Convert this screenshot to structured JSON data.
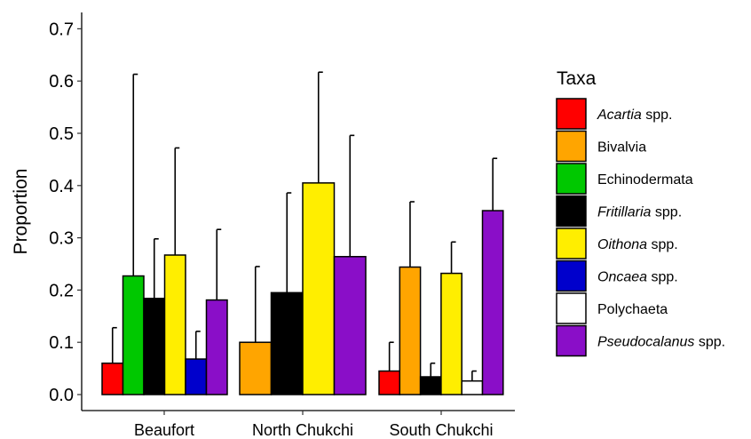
{
  "chart_data": {
    "type": "bar",
    "ylabel": "Proportion",
    "xlabel": "",
    "title": "",
    "ylim": [
      0,
      0.73
    ],
    "yticks": [
      "0.0",
      "0.1",
      "0.2",
      "0.3",
      "0.4",
      "0.5",
      "0.6",
      "0.7"
    ],
    "ytick_values": [
      0,
      0.1,
      0.2,
      0.3,
      0.4,
      0.5,
      0.6,
      0.7
    ],
    "grid": false,
    "legend": {
      "title": "Taxa",
      "placement": "right",
      "items": [
        {
          "key": "acartia",
          "italic": "Acartia",
          "rest": " spp.",
          "color": "#ff0000"
        },
        {
          "key": "bivalvia",
          "italic": "",
          "rest": "Bivalvia",
          "color": "#ffa500"
        },
        {
          "key": "echinodermata",
          "italic": "",
          "rest": "Echinodermata",
          "color": "#00c800"
        },
        {
          "key": "fritillaria",
          "italic": "Fritillaria",
          "rest": " spp.",
          "color": "#000000"
        },
        {
          "key": "oithona",
          "italic": "Oithona",
          "rest": " spp.",
          "color": "#ffee00"
        },
        {
          "key": "oncaea",
          "italic": "Oncaea",
          "rest": " spp.",
          "color": "#0000cc"
        },
        {
          "key": "polychaeta",
          "italic": "",
          "rest": "Polychaeta",
          "color": "#ffffff"
        },
        {
          "key": "pseudocalanus",
          "italic": "Pseudocalanus",
          "rest": " spp.",
          "color": "#8a0ec8"
        }
      ]
    },
    "categories": [
      "Beaufort",
      "North Chukchi",
      "South Chukchi"
    ],
    "groups": [
      {
        "category": "Beaufort",
        "bars": [
          {
            "taxon": "acartia",
            "value": 0.06,
            "error_upper": 0.128
          },
          {
            "taxon": "echinodermata",
            "value": 0.227,
            "error_upper": 0.613
          },
          {
            "taxon": "fritillaria",
            "value": 0.184,
            "error_upper": 0.298
          },
          {
            "taxon": "oithona",
            "value": 0.267,
            "error_upper": 0.472
          },
          {
            "taxon": "oncaea",
            "value": 0.068,
            "error_upper": 0.121
          },
          {
            "taxon": "pseudocalanus",
            "value": 0.181,
            "error_upper": 0.316
          }
        ]
      },
      {
        "category": "North Chukchi",
        "bars": [
          {
            "taxon": "bivalvia",
            "value": 0.1,
            "error_upper": 0.245
          },
          {
            "taxon": "fritillaria",
            "value": 0.195,
            "error_upper": 0.386
          },
          {
            "taxon": "oithona",
            "value": 0.405,
            "error_upper": 0.617
          },
          {
            "taxon": "pseudocalanus",
            "value": 0.264,
            "error_upper": 0.496
          }
        ]
      },
      {
        "category": "South Chukchi",
        "bars": [
          {
            "taxon": "acartia",
            "value": 0.045,
            "error_upper": 0.1
          },
          {
            "taxon": "bivalvia",
            "value": 0.244,
            "error_upper": 0.369
          },
          {
            "taxon": "fritillaria",
            "value": 0.034,
            "error_upper": 0.06
          },
          {
            "taxon": "oithona",
            "value": 0.232,
            "error_upper": 0.292
          },
          {
            "taxon": "polychaeta",
            "value": 0.026,
            "error_upper": 0.045
          },
          {
            "taxon": "pseudocalanus",
            "value": 0.352,
            "error_upper": 0.452
          }
        ]
      }
    ]
  }
}
